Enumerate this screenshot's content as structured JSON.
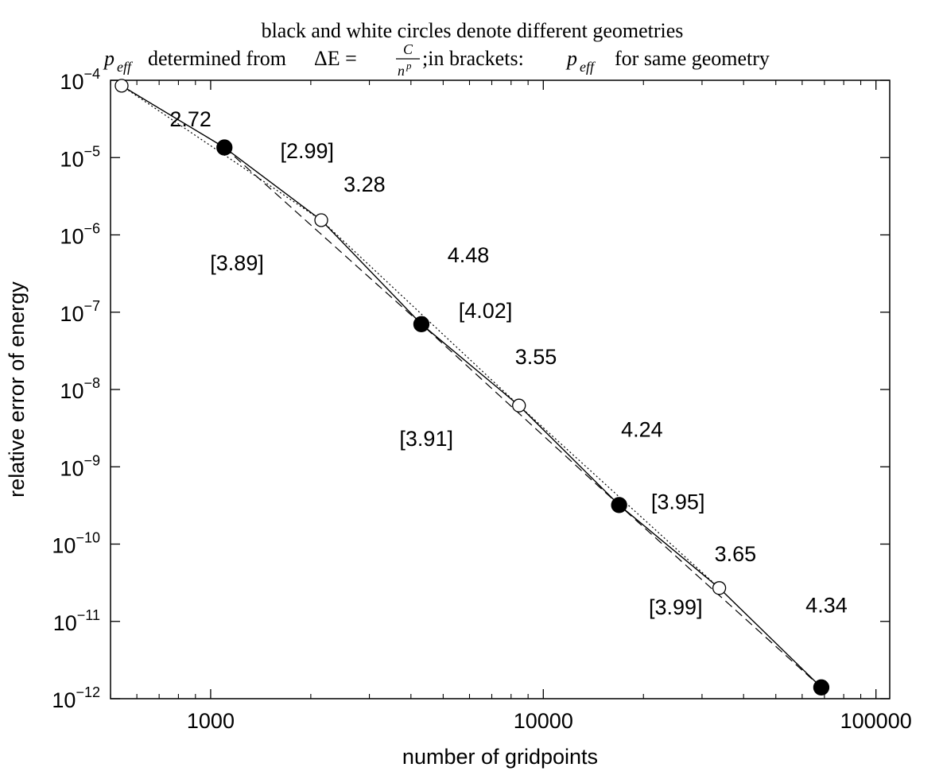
{
  "chart_data": {
    "type": "line",
    "title_line1": "black and white circles denote different geometries",
    "title_line2": {
      "p_eff": "p",
      "p_eff_sub": "eff",
      "determined_from": "determined from",
      "delta_e": "ΔE =",
      "frac_num": "C",
      "frac_den_base": "n",
      "frac_den_exp": "p",
      "in_brackets": ";in brackets:",
      "for_same_geometry": "for same geometry"
    },
    "xlabel": "number of gridpoints",
    "ylabel": "relative error of energy",
    "x_scale": "log",
    "y_scale": "log",
    "xlim": [
      500,
      110000
    ],
    "ylim": [
      1e-12,
      0.0001
    ],
    "x_ticks": [
      {
        "value": 1000,
        "label": "1000"
      },
      {
        "value": 10000,
        "label": "10000"
      },
      {
        "value": 100000,
        "label": "100000"
      }
    ],
    "y_ticks": [
      {
        "value": 0.0001,
        "base": "10",
        "exp": "−4"
      },
      {
        "value": 1e-05,
        "base": "10",
        "exp": "−5"
      },
      {
        "value": 1e-06,
        "base": "10",
        "exp": "−6"
      },
      {
        "value": 1e-07,
        "base": "10",
        "exp": "−7"
      },
      {
        "value": 1e-08,
        "base": "10",
        "exp": "−8"
      },
      {
        "value": 1e-09,
        "base": "10",
        "exp": "−9"
      },
      {
        "value": 1e-10,
        "base": "10",
        "exp": "−10"
      },
      {
        "value": 1e-11,
        "base": "10",
        "exp": "−11"
      },
      {
        "value": 1e-12,
        "base": "10",
        "exp": "−12"
      }
    ],
    "grid": false,
    "series": [
      {
        "style": "solid",
        "points": [
          {
            "x": 540,
            "y": 8.5e-05,
            "marker": "open"
          },
          {
            "x": 1100,
            "y": 1.35e-05,
            "marker": "filled"
          },
          {
            "x": 2150,
            "y": 1.55e-06,
            "marker": "open"
          },
          {
            "x": 4300,
            "y": 7e-08,
            "marker": "filled"
          },
          {
            "x": 8450,
            "y": 6.2e-09,
            "marker": "open"
          },
          {
            "x": 16900,
            "y": 3.2e-10,
            "marker": "filled"
          },
          {
            "x": 33800,
            "y": 2.7e-11,
            "marker": "open"
          },
          {
            "x": 68500,
            "y": 1.4e-12,
            "marker": "filled"
          }
        ]
      },
      {
        "style": "dotted",
        "points": [
          {
            "x": 540,
            "y": 8.5e-05
          },
          {
            "x": 2150,
            "y": 1.55e-06
          },
          {
            "x": 8450,
            "y": 6.2e-09
          },
          {
            "x": 33800,
            "y": 2.7e-11
          }
        ]
      },
      {
        "style": "dashed",
        "points": [
          {
            "x": 1100,
            "y": 1.35e-05
          },
          {
            "x": 4300,
            "y": 7e-08
          },
          {
            "x": 16900,
            "y": 3.2e-10
          },
          {
            "x": 68500,
            "y": 1.4e-12
          }
        ]
      }
    ],
    "annotations": [
      {
        "text": "2.72",
        "x": 870,
        "y": 3.2e-05
      },
      {
        "text": "[2.99]",
        "x": 1950,
        "y": 1.25e-05
      },
      {
        "text": "3.28",
        "x": 2900,
        "y": 4.6e-06
      },
      {
        "text": "[3.89]",
        "x": 1200,
        "y": 4.4e-07
      },
      {
        "text": "4.48",
        "x": 5950,
        "y": 5.6e-07
      },
      {
        "text": "[4.02]",
        "x": 6700,
        "y": 1.07e-07
      },
      {
        "text": "3.55",
        "x": 9500,
        "y": 2.7e-08
      },
      {
        "text": "[3.91]",
        "x": 4450,
        "y": 2.35e-09
      },
      {
        "text": "4.24",
        "x": 19800,
        "y": 3.1e-09
      },
      {
        "text": "[3.95]",
        "x": 25400,
        "y": 3.6e-10
      },
      {
        "text": "3.65",
        "x": 37800,
        "y": 7.6e-11
      },
      {
        "text": "[3.99]",
        "x": 25000,
        "y": 1.56e-11
      },
      {
        "text": "4.34",
        "x": 71000,
        "y": 1.65e-11
      }
    ]
  }
}
